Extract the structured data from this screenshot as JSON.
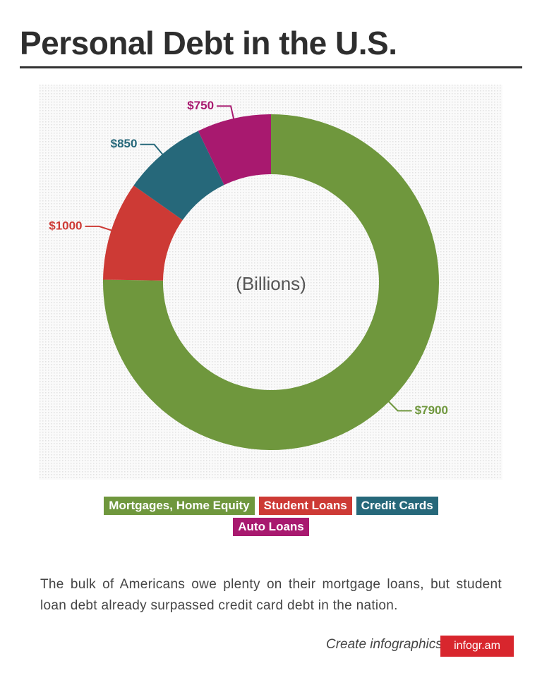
{
  "chart_data": {
    "type": "donut",
    "title": "Personal Debt in the U.S.",
    "center_label": "(Billions)",
    "categories": [
      "Mortgages, Home Equity",
      "Student Loans",
      "Credit Cards",
      "Auto Loans"
    ],
    "values": [
      7900,
      1000,
      850,
      750
    ],
    "value_labels": [
      "$7900",
      "$1000",
      "$850",
      "$750"
    ],
    "colors": [
      "#6f973d",
      "#cd3a35",
      "#26687a",
      "#a8196f"
    ],
    "legend": "bottom"
  },
  "description": "The bulk of Americans owe plenty on their mortgage loans, but student loan debt already surpassed credit card debt in the nation.",
  "footer": {
    "text": "Create infographics",
    "brand": "infogr.am"
  }
}
